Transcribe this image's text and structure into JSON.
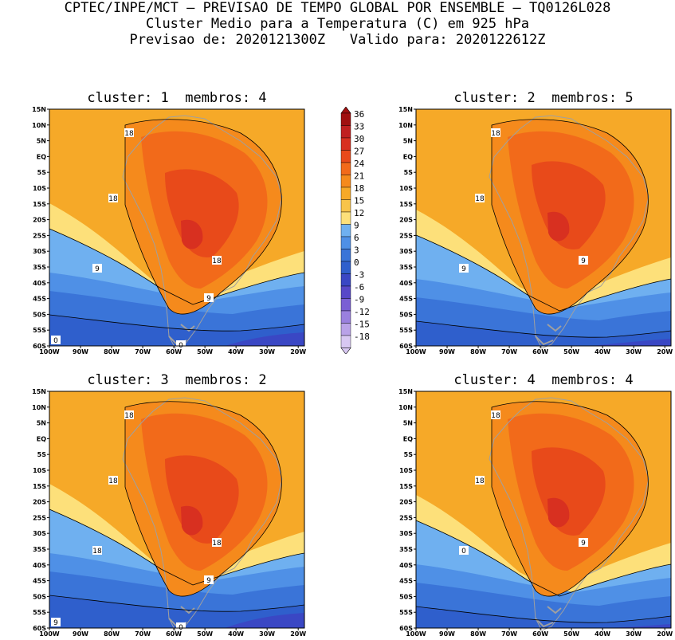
{
  "header": {
    "line1": "CPTEC/INPE/MCT – PREVISAO DE TEMPO GLOBAL POR ENSEMBLE – TQ0126L028",
    "line2": "Cluster Medio para a Temperatura (C) em 925 hPa",
    "line3": "Previsao de: 2020121300Z   Valido para: 2020122612Z"
  },
  "panels": [
    {
      "title": "cluster: 1  membros: 4"
    },
    {
      "title": "cluster: 2  membros: 5"
    },
    {
      "title": "cluster: 3  membros: 2"
    },
    {
      "title": "cluster: 4  membros: 4"
    }
  ],
  "lat_labels": [
    "15N",
    "10N",
    "5N",
    "EQ",
    "5S",
    "10S",
    "15S",
    "20S",
    "25S",
    "30S",
    "35S",
    "40S",
    "45S",
    "50S",
    "55S",
    "60S"
  ],
  "lon_labels": [
    "100W",
    "90W",
    "80W",
    "70W",
    "60W",
    "50W",
    "40W",
    "30W",
    "20W"
  ],
  "colorbar": {
    "levels": [
      "36",
      "33",
      "30",
      "27",
      "24",
      "21",
      "18",
      "15",
      "12",
      "9",
      "6",
      "3",
      "0",
      "-3",
      "-6",
      "-9",
      "-12",
      "-15",
      "-18"
    ],
    "colors": [
      "#a01010",
      "#c02020",
      "#d83020",
      "#e84a1a",
      "#f26a1a",
      "#f58a1c",
      "#f6a928",
      "#f8c44a",
      "#fde07a",
      "#6fb0f0",
      "#4f90e6",
      "#3a74d8",
      "#2f5fcc",
      "#3a47c4",
      "#5848c8",
      "#7a5fd4",
      "#9a80de",
      "#b9a2e8",
      "#d8c8f2"
    ]
  },
  "contour_labels": {
    "p1": [
      "18",
      "18",
      "18",
      "9",
      "9",
      "0",
      "0"
    ],
    "p2": [
      "18",
      "18",
      "9",
      "9"
    ],
    "p3": [
      "18",
      "18",
      "18",
      "18",
      "9",
      "9",
      "0"
    ],
    "p4": [
      "18",
      "18",
      "9",
      "0"
    ]
  }
}
